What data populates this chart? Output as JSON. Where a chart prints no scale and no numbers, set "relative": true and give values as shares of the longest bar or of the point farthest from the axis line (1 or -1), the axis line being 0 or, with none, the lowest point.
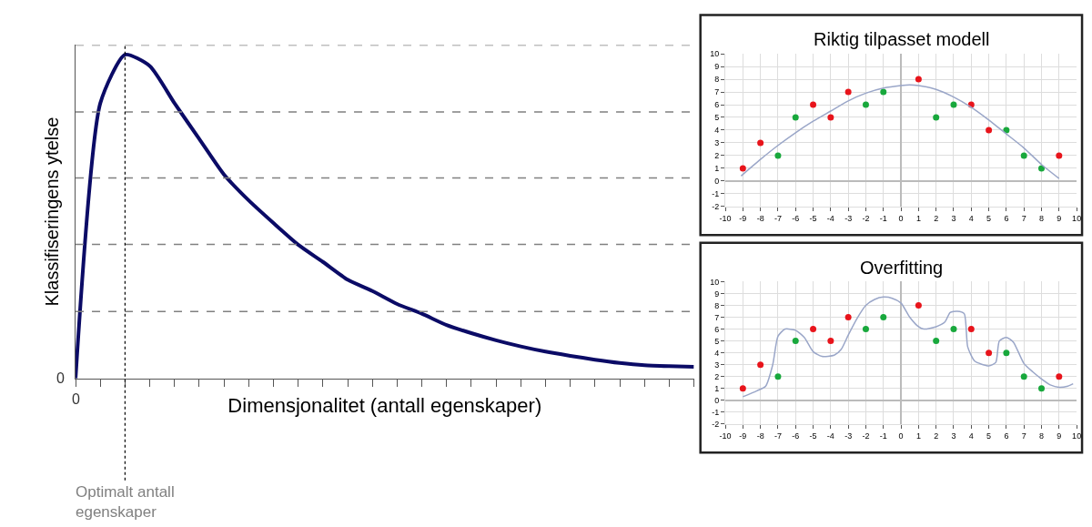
{
  "chart_data": [
    {
      "type": "line",
      "relative": true,
      "xlabel": "Dimensjonalitet (antall egenskaper)",
      "ylabel": "Klassifiseringens ytelse",
      "categories": [
        null,
        null,
        null,
        null,
        null,
        null,
        null,
        null,
        null,
        null,
        null,
        null,
        null,
        null,
        null,
        null,
        null,
        null,
        null,
        null,
        null,
        null,
        null,
        null,
        null,
        null
      ],
      "series": [
        {
          "color": "#0b0b66",
          "values": [
            0,
            0.85,
            1.0,
            0.965,
            0.85,
            0.74,
            0.63,
            0.55,
            0.48,
            0.413,
            0.36,
            0.305,
            0.27,
            0.23,
            0.2,
            0.165,
            0.14,
            0.118,
            0.099,
            0.083,
            0.07,
            0.058,
            0.048,
            0.041,
            0.038,
            0.036
          ]
        }
      ],
      "annotations": [
        "0",
        "0",
        "Optimalt antall egenskaper"
      ],
      "ref_lines": [
        {
          "axis": "y",
          "value": 0.207,
          "color": "#808080",
          "line_style": "dashed"
        },
        {
          "axis": "y",
          "value": 0.414,
          "color": "#808080",
          "line_style": "dashed"
        },
        {
          "axis": "y",
          "value": 0.619,
          "color": "#808080",
          "line_style": "dashed"
        },
        {
          "axis": "y",
          "value": 0.823,
          "color": "#808080",
          "line_style": "dashed"
        },
        {
          "axis": "y",
          "value": 1.03,
          "color": "#808080",
          "line_style": "dashed"
        }
      ],
      "line_style": "solid",
      "grid": false
    },
    {
      "type": "scatter",
      "title": "Riktig tilpasset modell",
      "xlim": [
        -10,
        10
      ],
      "ylim": [
        -2,
        10
      ],
      "xticks": [
        -10,
        -9,
        -8,
        -7,
        -6,
        -5,
        -4,
        -3,
        -2,
        -1,
        0,
        1,
        2,
        3,
        4,
        5,
        6,
        7,
        8,
        9,
        10
      ],
      "yticks": [
        -2,
        -1,
        0,
        1,
        2,
        3,
        4,
        5,
        6,
        7,
        8,
        9,
        10
      ],
      "grid": true,
      "series": [
        {
          "type": "scatter",
          "marker": "circle",
          "color": "#e8141b",
          "x": [
            -9,
            -8,
            -5,
            -4,
            -3,
            1,
            4,
            5,
            9
          ],
          "values": [
            1,
            3,
            6,
            5,
            7,
            8,
            6,
            4,
            2
          ]
        },
        {
          "type": "scatter",
          "marker": "circle",
          "color": "#18a83c",
          "x": [
            -7,
            -6,
            -2,
            -1,
            2,
            3,
            6,
            7,
            8
          ],
          "values": [
            2,
            5,
            6,
            7,
            5,
            6,
            4,
            2,
            1
          ]
        },
        {
          "type": "line",
          "color": "#9aa6c8",
          "x": [
            -9.1,
            -8,
            -7,
            -6,
            -5,
            -4,
            -3,
            -2,
            -1,
            0,
            0.5,
            1,
            2,
            3,
            4,
            5,
            6,
            7,
            8,
            9
          ],
          "values": [
            0.4,
            1.7,
            2.8,
            3.8,
            4.7,
            5.5,
            6.3,
            6.9,
            7.3,
            7.5,
            7.55,
            7.5,
            7.2,
            6.6,
            5.8,
            4.8,
            3.7,
            2.6,
            1.3,
            0.2
          ]
        }
      ]
    },
    {
      "type": "scatter",
      "title": "Overfitting",
      "xlim": [
        -10,
        10
      ],
      "ylim": [
        -2,
        10
      ],
      "xticks": [
        -10,
        -9,
        -8,
        -7,
        -6,
        -5,
        -4,
        -3,
        -2,
        -1,
        0,
        1,
        2,
        3,
        4,
        5,
        6,
        7,
        8,
        9,
        10
      ],
      "yticks": [
        -2,
        -1,
        0,
        1,
        2,
        3,
        4,
        5,
        6,
        7,
        8,
        9,
        10
      ],
      "grid": true,
      "series": [
        {
          "type": "scatter",
          "marker": "circle",
          "color": "#e8141b",
          "x": [
            -9,
            -8,
            -5,
            -4,
            -3,
            1,
            4,
            5,
            9
          ],
          "values": [
            1,
            3,
            6,
            5,
            7,
            8,
            6,
            4,
            2
          ]
        },
        {
          "type": "scatter",
          "marker": "circle",
          "color": "#18a83c",
          "x": [
            -7,
            -6,
            -2,
            -1,
            2,
            3,
            6,
            7,
            8
          ],
          "values": [
            2,
            5,
            6,
            7,
            5,
            6,
            4,
            2,
            1
          ]
        },
        {
          "type": "line",
          "color": "#9aa6c8",
          "x": [
            -9,
            -8.2,
            -7.7,
            -7.3,
            -7,
            -6.6,
            -6,
            -5.5,
            -5,
            -4.5,
            -3.8,
            -3.4,
            -3,
            -2.5,
            -2,
            -1.5,
            -1,
            -0.5,
            0,
            0.5,
            1,
            1.3,
            2,
            2.5,
            2.8,
            3.2,
            3.6,
            3.8,
            4.2,
            5,
            5.4,
            5.6,
            6,
            6.4,
            7,
            7.5,
            8,
            8.5,
            9,
            9.5,
            9.8
          ],
          "values": [
            0.3,
            0.8,
            1.2,
            3,
            5.4,
            6,
            5.9,
            5.3,
            4.1,
            3.7,
            3.8,
            4.3,
            5.5,
            6.9,
            8,
            8.5,
            8.7,
            8.6,
            8.2,
            7,
            6.2,
            6,
            6.2,
            6.6,
            7.4,
            7.5,
            7.3,
            4.5,
            3.3,
            2.9,
            3.2,
            5,
            5.3,
            4.9,
            3.1,
            2.4,
            1.8,
            1.3,
            1.1,
            1.2,
            1.4
          ]
        }
      ]
    }
  ]
}
